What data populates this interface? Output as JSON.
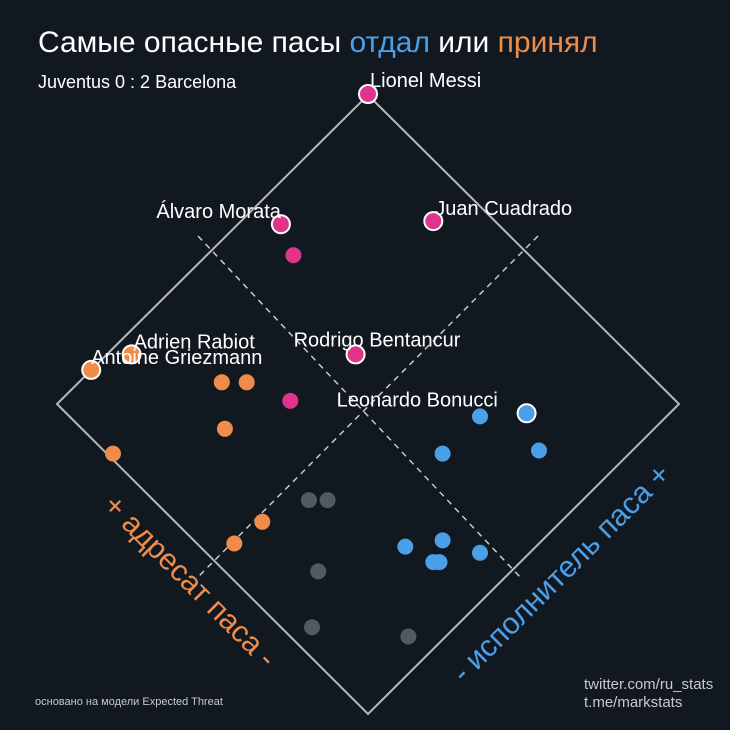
{
  "title": {
    "part1": "Самые опасные пасы ",
    "part2": "отдал",
    "part3": " или ",
    "part4": "принял"
  },
  "subtitle": "Juventus 0 : 2 Barcelona",
  "axis_left_label": "+ адресат паса -",
  "axis_right_label": "- исполнитель паса +",
  "footnote": "основано на модели Expected Threat",
  "credits": [
    "twitter.com/ru_stats",
    "t.me/markstats"
  ],
  "colors": {
    "background": "#111820",
    "gave": "#4b9fe8",
    "received": "#f08c4a",
    "both": "#e0338c",
    "neither": "#4f5a63",
    "frame": "#b4b9be"
  },
  "chart_data": {
    "type": "scatter",
    "title": "Самые опасные пасы отдал или принял",
    "subtitle": "Juventus 0 : 2 Barcelona",
    "axes": {
      "u": {
        "label": "исполнитель паса (giver)",
        "range": [
          0,
          1
        ],
        "direction": "lower-left to upper-right"
      },
      "v": {
        "label": "адресат паса (receiver)",
        "range": [
          0,
          1
        ],
        "direction": "lower-right to upper-left"
      }
    },
    "groups": [
      "gave",
      "received",
      "both",
      "neither"
    ],
    "points": [
      {
        "u": 1.0,
        "v": 1.0,
        "group": "both",
        "label": "Lionel Messi"
      },
      {
        "u": 0.65,
        "v": 0.93,
        "group": "both",
        "label": "Álvaro Morata"
      },
      {
        "u": 0.9,
        "v": 0.69,
        "group": "both",
        "label": "Juan Cuadrado"
      },
      {
        "u": 0.62,
        "v": 0.86,
        "group": "both",
        "label": ""
      },
      {
        "u": 0.56,
        "v": 0.6,
        "group": "both",
        "label": "Rodrigo Bentancur"
      },
      {
        "u": 0.38,
        "v": 0.63,
        "group": "both",
        "label": ""
      },
      {
        "u": 0.66,
        "v": 0.3,
        "group": "gave",
        "label": ""
      },
      {
        "u": 0.74,
        "v": 0.23,
        "group": "gave",
        "label": "Leonardo Bonucci"
      },
      {
        "u": 0.54,
        "v": 0.3,
        "group": "gave",
        "label": ""
      },
      {
        "u": 0.7,
        "v": 0.15,
        "group": "gave",
        "label": ""
      },
      {
        "u": 0.4,
        "v": 0.16,
        "group": "gave",
        "label": ""
      },
      {
        "u": 0.36,
        "v": 0.13,
        "group": "gave",
        "label": ""
      },
      {
        "u": 0.33,
        "v": 0.21,
        "group": "gave",
        "label": ""
      },
      {
        "u": 0.35,
        "v": 0.14,
        "group": "gave",
        "label": ""
      },
      {
        "u": 0.44,
        "v": 0.08,
        "group": "gave",
        "label": ""
      },
      {
        "u": 0.3,
        "v": 0.77,
        "group": "received",
        "label": ""
      },
      {
        "u": 0.34,
        "v": 0.73,
        "group": "received",
        "label": ""
      },
      {
        "u": 0.2,
        "v": 0.96,
        "group": "received",
        "label": "Adrien Rabiot"
      },
      {
        "u": 0.11,
        "v": 1.0,
        "group": "received",
        "label": "Antoine Griezmann"
      },
      {
        "u": 0.23,
        "v": 0.69,
        "group": "received",
        "label": ""
      },
      {
        "u": 0.01,
        "v": 0.83,
        "group": "received",
        "label": ""
      },
      {
        "u": 0.14,
        "v": 0.48,
        "group": "received",
        "label": ""
      },
      {
        "u": 0.06,
        "v": 0.49,
        "group": "received",
        "label": ""
      },
      {
        "u": 0.25,
        "v": 0.44,
        "group": "neither",
        "label": ""
      },
      {
        "u": 0.28,
        "v": 0.41,
        "group": "neither",
        "label": ""
      },
      {
        "u": 0.15,
        "v": 0.31,
        "group": "neither",
        "label": ""
      },
      {
        "u": 0.05,
        "v": 0.23,
        "group": "neither",
        "label": ""
      },
      {
        "u": 0.19,
        "v": 0.06,
        "group": "neither",
        "label": ""
      }
    ]
  }
}
